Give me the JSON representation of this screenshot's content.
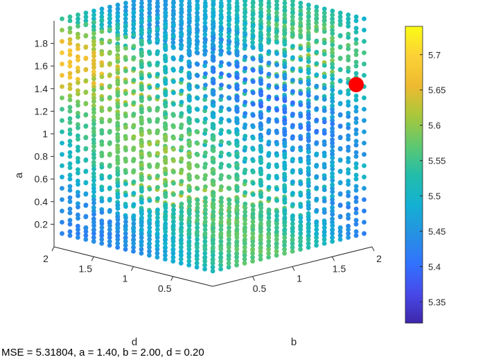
{
  "caption": "MSE = 5.31804, a = 1.40, b = 2.00, d = 0.20",
  "chart_data": {
    "type": "scatter",
    "subtype": "3d-scatter",
    "xlabel": "b",
    "ylabel": "d",
    "zlabel": "a",
    "x_ticks": [
      "0.5",
      "1",
      "1.5",
      "2"
    ],
    "y_ticks": [
      "0.5",
      "1",
      "1.5",
      "2"
    ],
    "z_ticks": [
      "0.2",
      "0.4",
      "0.6",
      "0.8",
      "1",
      "1.2",
      "1.4",
      "1.6",
      "1.8"
    ],
    "xlim": [
      0,
      2
    ],
    "ylim": [
      0,
      2
    ],
    "zlim": [
      0.1,
      2.0
    ],
    "grid_values": {
      "b": [
        0.1,
        2.0,
        0.1
      ],
      "d": [
        0.1,
        2.0,
        0.1
      ],
      "a": [
        0.1,
        2.0,
        0.1
      ]
    },
    "color_metric": "MSE",
    "colorbar": {
      "ticks": [
        "5.35",
        "5.4",
        "5.45",
        "5.5",
        "5.55",
        "5.6",
        "5.65",
        "5.7"
      ],
      "range": [
        5.32,
        5.74
      ],
      "colormap": "parula"
    },
    "highlight": {
      "a": 1.4,
      "b": 2.0,
      "d": 0.2,
      "mse": 5.31804,
      "color": "#ff0000"
    },
    "grid": false
  }
}
